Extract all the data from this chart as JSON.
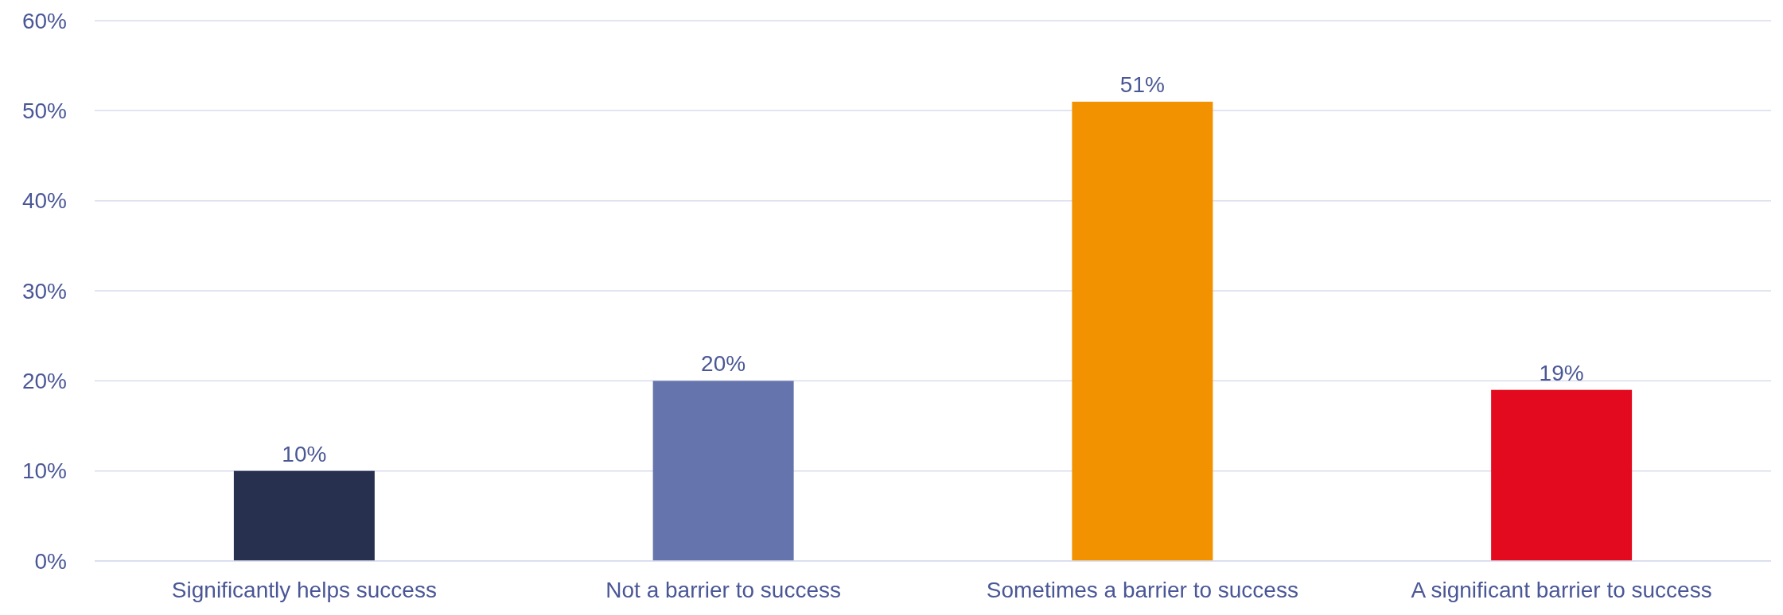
{
  "chart_data": {
    "type": "bar",
    "categories": [
      "Significantly helps success",
      "Not a barrier to success",
      "Sometimes a barrier to success",
      "A significant barrier to success"
    ],
    "values": [
      10,
      20,
      51,
      19
    ],
    "value_labels": [
      "10%",
      "20%",
      "51%",
      "19%"
    ],
    "colors": [
      "#283050",
      "#6574ad",
      "#f39200",
      "#e30a1f"
    ],
    "ylim": [
      0,
      60
    ],
    "yticks": [
      {
        "value": 0,
        "label": "0%"
      },
      {
        "value": 10,
        "label": "10%"
      },
      {
        "value": 20,
        "label": "20%"
      },
      {
        "value": 30,
        "label": "30%"
      },
      {
        "value": 40,
        "label": "40%"
      },
      {
        "value": 50,
        "label": "50%"
      },
      {
        "value": 60,
        "label": "60%"
      }
    ],
    "grid": "y"
  }
}
